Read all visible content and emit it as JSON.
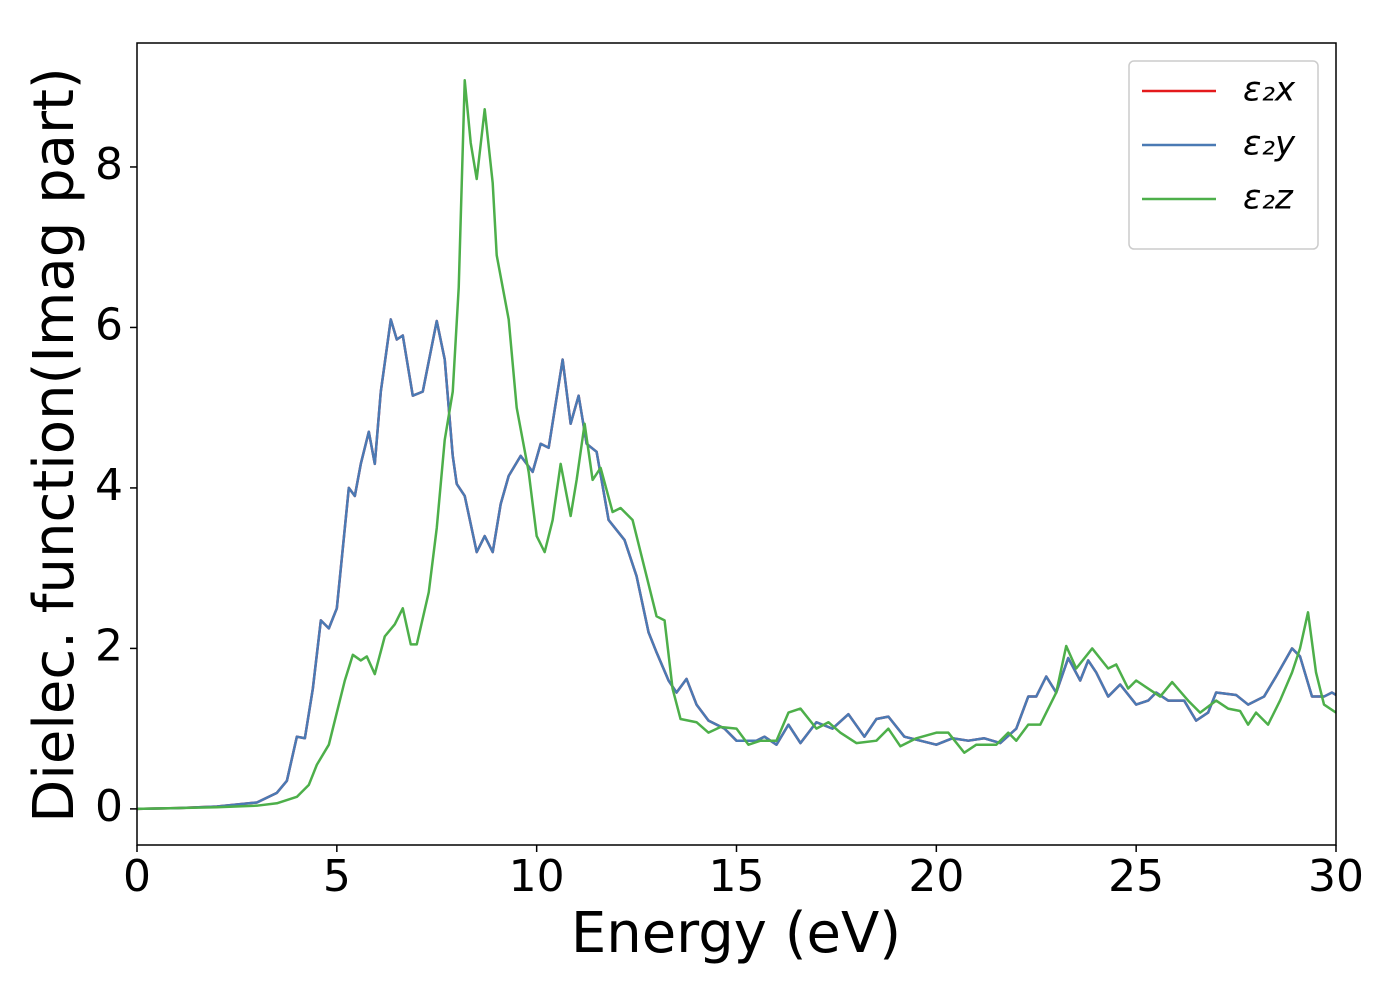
{
  "chart_data": {
    "type": "line",
    "xlabel": "Energy (eV)",
    "ylabel": "Dielec. function(Imag part)",
    "xlim": [
      0,
      30
    ],
    "ylim": [
      -0.45,
      9.545
    ],
    "xticks": [
      0,
      5,
      10,
      15,
      20,
      25,
      30
    ],
    "yticks": [
      0,
      2,
      4,
      6,
      8
    ],
    "grid": false,
    "legend": "upper right",
    "series": [
      {
        "name": "ε₂x",
        "color": "#e41a1c",
        "x": [
          0,
          1,
          2,
          3,
          3.5,
          3.75,
          4.0,
          4.2,
          4.4,
          4.6,
          4.8,
          5.0,
          5.2,
          5.3,
          5.45,
          5.6,
          5.8,
          5.95,
          6.1,
          6.35,
          6.5,
          6.65,
          6.9,
          7.15,
          7.5,
          7.7,
          7.9,
          8.0,
          8.2,
          8.5,
          8.7,
          8.9,
          9.1,
          9.3,
          9.6,
          9.9,
          10.1,
          10.3,
          10.65,
          10.85,
          11.05,
          11.25,
          11.5,
          11.8,
          12.2,
          12.5,
          12.8,
          13.0,
          13.3,
          13.5,
          13.75,
          14.0,
          14.3,
          14.7,
          15.0,
          15.5,
          15.7,
          16.0,
          16.3,
          16.6,
          17.0,
          17.4,
          17.8,
          18.2,
          18.5,
          18.8,
          19.2,
          19.6,
          20.0,
          20.4,
          20.8,
          21.2,
          21.6,
          22.0,
          22.3,
          22.5,
          22.75,
          23.0,
          23.3,
          23.6,
          23.8,
          24.0,
          24.3,
          24.6,
          25.0,
          25.3,
          25.5,
          25.8,
          26.2,
          26.5,
          26.8,
          27.0,
          27.5,
          27.8,
          28.2,
          28.5,
          28.9,
          29.1,
          29.4,
          29.7,
          29.9,
          30
        ],
        "values": [
          0,
          0.01,
          0.03,
          0.08,
          0.2,
          0.35,
          0.9,
          0.88,
          1.5,
          2.35,
          2.25,
          2.5,
          3.5,
          4.0,
          3.9,
          4.3,
          4.7,
          4.3,
          5.2,
          6.1,
          5.85,
          5.9,
          5.15,
          5.2,
          6.08,
          5.6,
          4.4,
          4.05,
          3.9,
          3.2,
          3.4,
          3.2,
          3.8,
          4.15,
          4.4,
          4.2,
          4.55,
          4.5,
          5.6,
          4.8,
          5.15,
          4.55,
          4.45,
          3.6,
          3.35,
          2.9,
          2.2,
          1.95,
          1.6,
          1.45,
          1.62,
          1.3,
          1.1,
          1.0,
          0.85,
          0.85,
          0.9,
          0.8,
          1.05,
          0.82,
          1.08,
          1.0,
          1.18,
          0.9,
          1.12,
          1.15,
          0.9,
          0.85,
          0.8,
          0.88,
          0.85,
          0.88,
          0.82,
          1.0,
          1.4,
          1.4,
          1.65,
          1.45,
          1.88,
          1.6,
          1.85,
          1.7,
          1.4,
          1.55,
          1.3,
          1.35,
          1.45,
          1.35,
          1.35,
          1.1,
          1.2,
          1.45,
          1.42,
          1.3,
          1.4,
          1.65,
          2.0,
          1.9,
          1.4,
          1.4,
          1.45,
          1.42
        ]
      },
      {
        "name": "ε₂y",
        "color": "#4a7ab4",
        "x": [
          0,
          1,
          2,
          3,
          3.5,
          3.75,
          4.0,
          4.2,
          4.4,
          4.6,
          4.8,
          5.0,
          5.2,
          5.3,
          5.45,
          5.6,
          5.8,
          5.95,
          6.1,
          6.35,
          6.5,
          6.65,
          6.9,
          7.15,
          7.5,
          7.7,
          7.9,
          8.0,
          8.2,
          8.5,
          8.7,
          8.9,
          9.1,
          9.3,
          9.6,
          9.9,
          10.1,
          10.3,
          10.65,
          10.85,
          11.05,
          11.25,
          11.5,
          11.8,
          12.2,
          12.5,
          12.8,
          13.0,
          13.3,
          13.5,
          13.75,
          14.0,
          14.3,
          14.7,
          15.0,
          15.5,
          15.7,
          16.0,
          16.3,
          16.6,
          17.0,
          17.4,
          17.8,
          18.2,
          18.5,
          18.8,
          19.2,
          19.6,
          20.0,
          20.4,
          20.8,
          21.2,
          21.6,
          22.0,
          22.3,
          22.5,
          22.75,
          23.0,
          23.3,
          23.6,
          23.8,
          24.0,
          24.3,
          24.6,
          25.0,
          25.3,
          25.5,
          25.8,
          26.2,
          26.5,
          26.8,
          27.0,
          27.5,
          27.8,
          28.2,
          28.5,
          28.9,
          29.1,
          29.4,
          29.7,
          29.9,
          30
        ],
        "values": [
          0,
          0.01,
          0.03,
          0.08,
          0.2,
          0.35,
          0.9,
          0.88,
          1.5,
          2.35,
          2.25,
          2.5,
          3.5,
          4.0,
          3.9,
          4.3,
          4.7,
          4.3,
          5.2,
          6.1,
          5.85,
          5.9,
          5.15,
          5.2,
          6.08,
          5.6,
          4.4,
          4.05,
          3.9,
          3.2,
          3.4,
          3.2,
          3.8,
          4.15,
          4.4,
          4.2,
          4.55,
          4.5,
          5.6,
          4.8,
          5.15,
          4.55,
          4.45,
          3.6,
          3.35,
          2.9,
          2.2,
          1.95,
          1.6,
          1.45,
          1.62,
          1.3,
          1.1,
          1.0,
          0.85,
          0.85,
          0.9,
          0.8,
          1.05,
          0.82,
          1.08,
          1.0,
          1.18,
          0.9,
          1.12,
          1.15,
          0.9,
          0.85,
          0.8,
          0.88,
          0.85,
          0.88,
          0.82,
          1.0,
          1.4,
          1.4,
          1.65,
          1.45,
          1.88,
          1.6,
          1.85,
          1.7,
          1.4,
          1.55,
          1.3,
          1.35,
          1.45,
          1.35,
          1.35,
          1.1,
          1.2,
          1.45,
          1.42,
          1.3,
          1.4,
          1.65,
          2.0,
          1.9,
          1.4,
          1.4,
          1.45,
          1.42
        ]
      },
      {
        "name": "ε₂z",
        "color": "#4daf4a",
        "x": [
          0,
          2,
          3,
          3.5,
          4.0,
          4.3,
          4.5,
          4.8,
          5.0,
          5.2,
          5.4,
          5.6,
          5.75,
          5.95,
          6.2,
          6.45,
          6.65,
          6.85,
          7.0,
          7.3,
          7.5,
          7.7,
          7.9,
          8.05,
          8.2,
          8.35,
          8.5,
          8.7,
          8.9,
          9.0,
          9.3,
          9.5,
          9.8,
          10.0,
          10.2,
          10.4,
          10.6,
          10.85,
          11.0,
          11.2,
          11.4,
          11.6,
          11.9,
          12.1,
          12.4,
          12.7,
          13.0,
          13.2,
          13.4,
          13.6,
          14.0,
          14.3,
          14.6,
          15.0,
          15.3,
          15.6,
          16.0,
          16.3,
          16.6,
          17.0,
          17.3,
          17.6,
          18.0,
          18.5,
          18.8,
          19.1,
          19.5,
          20.0,
          20.3,
          20.7,
          21.0,
          21.5,
          21.8,
          22.0,
          22.3,
          22.6,
          23.0,
          23.25,
          23.5,
          23.9,
          24.3,
          24.5,
          24.8,
          25.0,
          25.3,
          25.6,
          25.9,
          26.3,
          26.6,
          27.0,
          27.3,
          27.6,
          27.8,
          28.0,
          28.3,
          28.6,
          28.9,
          29.1,
          29.3,
          29.5,
          29.7,
          30
        ],
        "values": [
          0,
          0.02,
          0.04,
          0.07,
          0.15,
          0.3,
          0.55,
          0.8,
          1.2,
          1.6,
          1.92,
          1.85,
          1.9,
          1.68,
          2.15,
          2.3,
          2.5,
          2.05,
          2.05,
          2.7,
          3.5,
          4.6,
          5.2,
          6.5,
          9.08,
          8.3,
          7.85,
          8.72,
          7.8,
          6.9,
          6.1,
          5.0,
          4.2,
          3.4,
          3.2,
          3.6,
          4.3,
          3.65,
          4.1,
          4.8,
          4.1,
          4.25,
          3.7,
          3.75,
          3.6,
          3.0,
          2.4,
          2.35,
          1.5,
          1.12,
          1.08,
          0.95,
          1.02,
          1.0,
          0.8,
          0.85,
          0.85,
          1.2,
          1.25,
          1.0,
          1.08,
          0.95,
          0.82,
          0.85,
          1.0,
          0.78,
          0.88,
          0.95,
          0.95,
          0.7,
          0.8,
          0.8,
          0.95,
          0.85,
          1.05,
          1.05,
          1.45,
          2.03,
          1.75,
          2.0,
          1.75,
          1.8,
          1.5,
          1.6,
          1.5,
          1.4,
          1.58,
          1.35,
          1.2,
          1.35,
          1.25,
          1.22,
          1.05,
          1.2,
          1.05,
          1.35,
          1.7,
          2.0,
          2.45,
          1.7,
          1.3,
          1.2
        ]
      }
    ]
  }
}
